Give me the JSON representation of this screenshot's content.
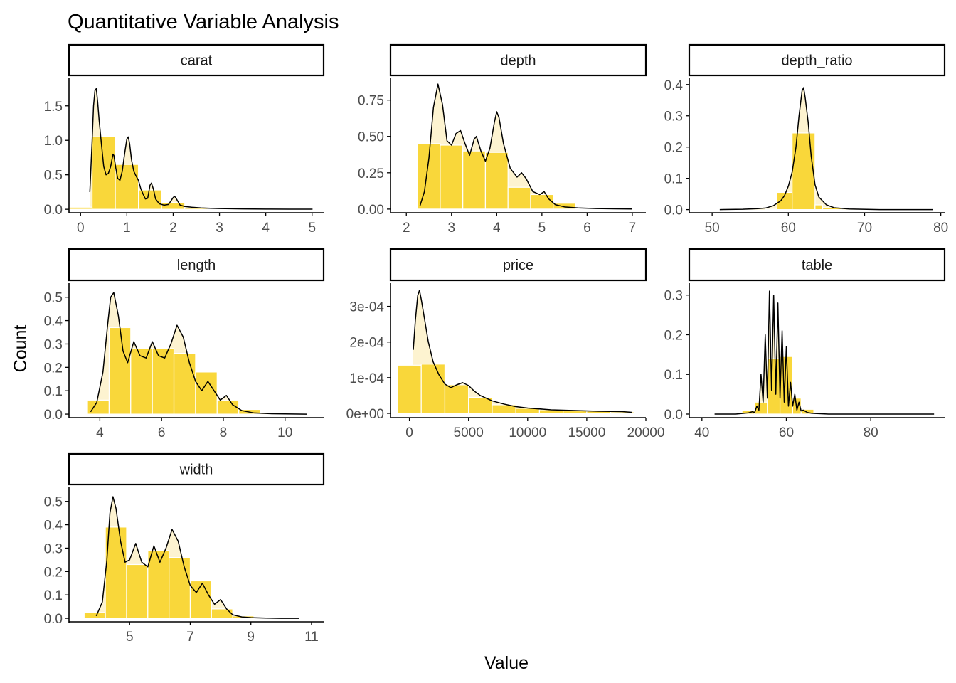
{
  "title": "Quantitative Variable Analysis",
  "xlabel": "Value",
  "ylabel": "Count",
  "colors": {
    "bar_fill": "#F9D73A",
    "density_fill": "#FDF3D0",
    "density_line": "#000000",
    "bar_border": "#ffffff",
    "strip_border": "#000000",
    "axis": "#000000"
  },
  "chart_data": [
    {
      "type": "histogram+density",
      "panel": "carat",
      "xlim": [
        -0.25,
        5.25
      ],
      "ylim": [
        -0.05,
        1.9
      ],
      "xticks": [
        0,
        1,
        2,
        3,
        4,
        5
      ],
      "xtick_labels": [
        "0",
        "1",
        "2",
        "3",
        "4",
        "5"
      ],
      "yticks": [
        0,
        0.5,
        1.0,
        1.5
      ],
      "ytick_labels": [
        "0.0",
        "0.5",
        "1.0",
        "1.5"
      ],
      "bins": [
        {
          "x0": -0.25,
          "x1": 0.25,
          "count": 0.03
        },
        {
          "x0": 0.25,
          "x1": 0.75,
          "count": 1.05
        },
        {
          "x0": 0.75,
          "x1": 1.25,
          "count": 0.65
        },
        {
          "x0": 1.25,
          "x1": 1.75,
          "count": 0.28
        },
        {
          "x0": 1.75,
          "x1": 2.25,
          "count": 0.1
        },
        {
          "x0": 2.25,
          "x1": 2.75,
          "count": 0.02
        },
        {
          "x0": 2.75,
          "x1": 3.25,
          "count": 0.003
        }
      ],
      "density": {
        "x": [
          0.2,
          0.25,
          0.28,
          0.31,
          0.34,
          0.37,
          0.4,
          0.45,
          0.5,
          0.55,
          0.6,
          0.65,
          0.7,
          0.72,
          0.76,
          0.8,
          0.85,
          0.9,
          0.95,
          1.0,
          1.03,
          1.06,
          1.1,
          1.15,
          1.2,
          1.25,
          1.3,
          1.35,
          1.4,
          1.45,
          1.5,
          1.53,
          1.57,
          1.62,
          1.7,
          1.8,
          1.9,
          2.0,
          2.03,
          2.08,
          2.15,
          2.25,
          2.4,
          2.6,
          2.8,
          3.0,
          3.5,
          4.0,
          4.5,
          5.01
        ],
        "y": [
          0.25,
          1.0,
          1.5,
          1.72,
          1.75,
          1.55,
          1.3,
          0.95,
          0.62,
          0.5,
          0.52,
          0.62,
          0.8,
          0.78,
          0.6,
          0.45,
          0.42,
          0.55,
          0.8,
          1.02,
          1.05,
          0.95,
          0.72,
          0.55,
          0.48,
          0.42,
          0.3,
          0.22,
          0.15,
          0.16,
          0.35,
          0.38,
          0.3,
          0.15,
          0.08,
          0.06,
          0.07,
          0.17,
          0.19,
          0.14,
          0.06,
          0.04,
          0.03,
          0.02,
          0.015,
          0.01,
          0.005,
          0.003,
          0.002,
          0.001
        ]
      }
    },
    {
      "type": "histogram+density",
      "panel": "depth",
      "xlim": [
        1.65,
        7.3
      ],
      "ylim": [
        -0.025,
        0.9
      ],
      "xticks": [
        2,
        3,
        4,
        5,
        6,
        7
      ],
      "xtick_labels": [
        "2",
        "3",
        "4",
        "5",
        "6",
        "7"
      ],
      "yticks": [
        0,
        0.25,
        0.5,
        0.75
      ],
      "ytick_labels": [
        "0.00",
        "0.25",
        "0.50",
        "0.75"
      ],
      "bins": [
        {
          "x0": 2.25,
          "x1": 2.75,
          "count": 0.45
        },
        {
          "x0": 2.75,
          "x1": 3.25,
          "count": 0.44
        },
        {
          "x0": 3.25,
          "x1": 3.75,
          "count": 0.4
        },
        {
          "x0": 3.75,
          "x1": 4.25,
          "count": 0.39
        },
        {
          "x0": 4.25,
          "x1": 4.75,
          "count": 0.15
        },
        {
          "x0": 4.75,
          "x1": 5.25,
          "count": 0.1
        },
        {
          "x0": 5.25,
          "x1": 5.75,
          "count": 0.04
        },
        {
          "x0": 5.75,
          "x1": 6.25,
          "count": 0.003
        }
      ],
      "density": {
        "x": [
          2.3,
          2.4,
          2.5,
          2.6,
          2.7,
          2.8,
          2.9,
          3.0,
          3.1,
          3.2,
          3.3,
          3.4,
          3.5,
          3.55,
          3.65,
          3.75,
          3.85,
          3.95,
          4.0,
          4.05,
          4.15,
          4.3,
          4.45,
          4.55,
          4.65,
          4.8,
          4.95,
          5.05,
          5.15,
          5.3,
          5.5,
          5.8,
          6.2,
          6.6,
          7.0
        ],
        "y": [
          0.02,
          0.12,
          0.35,
          0.7,
          0.86,
          0.72,
          0.47,
          0.44,
          0.52,
          0.54,
          0.45,
          0.37,
          0.48,
          0.5,
          0.4,
          0.33,
          0.42,
          0.6,
          0.67,
          0.63,
          0.45,
          0.28,
          0.22,
          0.25,
          0.21,
          0.12,
          0.1,
          0.12,
          0.07,
          0.03,
          0.015,
          0.008,
          0.004,
          0.002,
          0.001
        ]
      }
    },
    {
      "type": "histogram+density",
      "panel": "depth_ratio",
      "xlim": [
        47.0,
        80.5
      ],
      "ylim": [
        -0.01,
        0.42
      ],
      "xticks": [
        50,
        60,
        70,
        80
      ],
      "xtick_labels": [
        "50",
        "60",
        "70",
        "80"
      ],
      "yticks": [
        0,
        0.1,
        0.2,
        0.3,
        0.4
      ],
      "ytick_labels": [
        "0.0",
        "0.1",
        "0.2",
        "0.3",
        "0.4"
      ],
      "bins": [
        {
          "x0": 57.0,
          "x1": 58.5,
          "count": 0.003
        },
        {
          "x0": 58.5,
          "x1": 60.5,
          "count": 0.055
        },
        {
          "x0": 60.5,
          "x1": 63.5,
          "count": 0.245
        },
        {
          "x0": 63.5,
          "x1": 64.5,
          "count": 0.015
        },
        {
          "x0": 64.5,
          "x1": 67.0,
          "count": 0.006
        }
      ],
      "density": {
        "x": [
          51.0,
          54.0,
          56.0,
          57.0,
          58.0,
          59.0,
          59.5,
          60.0,
          60.5,
          61.0,
          61.4,
          61.8,
          62.0,
          62.2,
          62.6,
          63.0,
          63.5,
          64.0,
          65.0,
          66.0,
          68.0,
          72.0,
          76.0,
          79.0
        ],
        "y": [
          0.0,
          0.001,
          0.003,
          0.005,
          0.012,
          0.028,
          0.045,
          0.075,
          0.12,
          0.2,
          0.3,
          0.38,
          0.39,
          0.36,
          0.28,
          0.17,
          0.08,
          0.04,
          0.015,
          0.006,
          0.002,
          0.0,
          0.0,
          0.0
        ]
      }
    },
    {
      "type": "histogram+density",
      "panel": "length",
      "xlim": [
        3.0,
        11.25
      ],
      "ylim": [
        -0.015,
        0.56
      ],
      "xticks": [
        4,
        6,
        8,
        10
      ],
      "xtick_labels": [
        "4",
        "6",
        "8",
        "10"
      ],
      "yticks": [
        0,
        0.1,
        0.2,
        0.3,
        0.4,
        0.5
      ],
      "ytick_labels": [
        "0.0",
        "0.1",
        "0.2",
        "0.3",
        "0.4",
        "0.5"
      ],
      "bins": [
        {
          "x0": 3.6,
          "x1": 4.3,
          "count": 0.06
        },
        {
          "x0": 4.3,
          "x1": 5.0,
          "count": 0.37
        },
        {
          "x0": 5.0,
          "x1": 5.7,
          "count": 0.28
        },
        {
          "x0": 5.7,
          "x1": 6.4,
          "count": 0.28
        },
        {
          "x0": 6.4,
          "x1": 7.1,
          "count": 0.26
        },
        {
          "x0": 7.1,
          "x1": 7.8,
          "count": 0.18
        },
        {
          "x0": 7.8,
          "x1": 8.5,
          "count": 0.06
        },
        {
          "x0": 8.5,
          "x1": 9.2,
          "count": 0.02
        }
      ],
      "density": {
        "x": [
          3.7,
          3.9,
          4.1,
          4.25,
          4.35,
          4.45,
          4.6,
          4.75,
          4.9,
          5.1,
          5.3,
          5.5,
          5.7,
          5.9,
          6.1,
          6.3,
          6.5,
          6.7,
          6.9,
          7.1,
          7.3,
          7.5,
          7.7,
          7.9,
          8.1,
          8.3,
          8.6,
          9.0,
          9.5,
          10.0,
          10.7
        ],
        "y": [
          0.01,
          0.05,
          0.18,
          0.38,
          0.5,
          0.52,
          0.42,
          0.27,
          0.22,
          0.31,
          0.25,
          0.24,
          0.31,
          0.25,
          0.24,
          0.3,
          0.38,
          0.33,
          0.22,
          0.14,
          0.1,
          0.14,
          0.1,
          0.06,
          0.08,
          0.04,
          0.015,
          0.005,
          0.002,
          0.001,
          0.0
        ]
      }
    },
    {
      "type": "histogram+density",
      "panel": "price",
      "xlim": [
        -1600,
        20000
      ],
      "ylim": [
        -1.2e-05,
        0.000365
      ],
      "xticks": [
        0,
        5000,
        10000,
        15000,
        20000
      ],
      "xtick_labels": [
        "0",
        "5000",
        "10000",
        "15000",
        "20000"
      ],
      "yticks": [
        0,
        0.0001,
        0.0002,
        0.0003
      ],
      "ytick_labels": [
        "0e+00",
        "1e-04",
        "2e-04",
        "3e-04"
      ],
      "bins": [
        {
          "x0": -1000,
          "x1": 1000,
          "count": 0.000135
        },
        {
          "x0": 1000,
          "x1": 3000,
          "count": 0.000138
        },
        {
          "x0": 3000,
          "x1": 5000,
          "count": 8e-05
        },
        {
          "x0": 5000,
          "x1": 7000,
          "count": 4.5e-05
        },
        {
          "x0": 7000,
          "x1": 9000,
          "count": 2.4e-05
        },
        {
          "x0": 9000,
          "x1": 11000,
          "count": 1.4e-05
        },
        {
          "x0": 11000,
          "x1": 13000,
          "count": 1e-05
        },
        {
          "x0": 13000,
          "x1": 15000,
          "count": 7e-06
        },
        {
          "x0": 15000,
          "x1": 17000,
          "count": 6e-06
        },
        {
          "x0": 17000,
          "x1": 19000,
          "count": 4e-06
        }
      ],
      "density": {
        "x": [
          326,
          500,
          700,
          850,
          1000,
          1300,
          1600,
          2000,
          2500,
          3000,
          3500,
          4000,
          4500,
          5000,
          5500,
          6000,
          7000,
          8000,
          9000,
          10000,
          12000,
          14000,
          16000,
          18000,
          18800
        ],
        "y": [
          0.000178,
          0.00026,
          0.00033,
          0.000345,
          0.00032,
          0.00026,
          0.0002,
          0.000145,
          0.000108,
          8.2e-05,
          7.2e-05,
          8e-05,
          8.6e-05,
          7.8e-05,
          6.2e-05,
          5e-05,
          3.5e-05,
          2.6e-05,
          1.9e-05,
          1.5e-05,
          1e-05,
          8e-06,
          6e-06,
          5e-06,
          3e-06
        ]
      }
    },
    {
      "type": "histogram+density",
      "panel": "table",
      "xlim": [
        37.0,
        97.5
      ],
      "ylim": [
        -0.009,
        0.33
      ],
      "xticks": [
        40,
        60,
        80
      ],
      "xtick_labels": [
        "40",
        "60",
        "80"
      ],
      "yticks": [
        0,
        0.1,
        0.2,
        0.3
      ],
      "ytick_labels": [
        "0.0",
        "0.1",
        "0.2",
        "0.3"
      ],
      "bins": [
        {
          "x0": 49.5,
          "x1": 52.5,
          "count": 0.01
        },
        {
          "x0": 52.5,
          "x1": 55.5,
          "count": 0.03
        },
        {
          "x0": 55.5,
          "x1": 58.5,
          "count": 0.14
        },
        {
          "x0": 58.5,
          "x1": 61.5,
          "count": 0.145
        },
        {
          "x0": 61.5,
          "x1": 63.5,
          "count": 0.04
        },
        {
          "x0": 63.5,
          "x1": 66.5,
          "count": 0.012
        }
      ],
      "density": {
        "x": [
          43.0,
          48.0,
          50.0,
          51.0,
          52.0,
          52.5,
          53.0,
          53.5,
          54.0,
          54.5,
          55.0,
          55.5,
          56.0,
          56.5,
          57.0,
          57.5,
          58.0,
          58.5,
          59.0,
          59.5,
          60.0,
          60.5,
          61.0,
          61.5,
          62.0,
          62.5,
          63.0,
          63.5,
          64.0,
          65.0,
          66.0,
          70.0,
          80.0,
          95.0
        ],
        "y": [
          0.0,
          0.0,
          0.002,
          0.003,
          0.006,
          0.004,
          0.02,
          0.01,
          0.1,
          0.03,
          0.2,
          0.04,
          0.31,
          0.06,
          0.3,
          0.05,
          0.28,
          0.04,
          0.21,
          0.03,
          0.17,
          0.02,
          0.08,
          0.02,
          0.05,
          0.01,
          0.03,
          0.008,
          0.01,
          0.004,
          0.002,
          0.0,
          0.0,
          0.0
        ]
      }
    },
    {
      "type": "histogram+density",
      "panel": "width",
      "xlim": [
        3.0,
        11.4
      ],
      "ylim": [
        -0.015,
        0.56
      ],
      "xticks": [
        5,
        7,
        9,
        11
      ],
      "xtick_labels": [
        "5",
        "7",
        "9",
        "11"
      ],
      "yticks": [
        0,
        0.1,
        0.2,
        0.3,
        0.4,
        0.5
      ],
      "ytick_labels": [
        "0.0",
        "0.1",
        "0.2",
        "0.3",
        "0.4",
        "0.5"
      ],
      "bins": [
        {
          "x0": 3.5,
          "x1": 4.2,
          "count": 0.025
        },
        {
          "x0": 4.2,
          "x1": 4.9,
          "count": 0.39
        },
        {
          "x0": 4.9,
          "x1": 5.6,
          "count": 0.23
        },
        {
          "x0": 5.6,
          "x1": 6.3,
          "count": 0.29
        },
        {
          "x0": 6.3,
          "x1": 7.0,
          "count": 0.26
        },
        {
          "x0": 7.0,
          "x1": 7.7,
          "count": 0.16
        },
        {
          "x0": 7.7,
          "x1": 8.4,
          "count": 0.04
        },
        {
          "x0": 8.4,
          "x1": 9.1,
          "count": 0.01
        }
      ],
      "density": {
        "x": [
          3.9,
          4.1,
          4.25,
          4.35,
          4.45,
          4.55,
          4.7,
          4.85,
          5.0,
          5.2,
          5.4,
          5.6,
          5.8,
          6.0,
          6.2,
          6.4,
          6.6,
          6.8,
          7.0,
          7.2,
          7.4,
          7.6,
          7.8,
          8.0,
          8.2,
          8.4,
          8.7,
          9.0,
          9.5,
          10.0,
          10.6
        ],
        "y": [
          0.01,
          0.07,
          0.25,
          0.45,
          0.52,
          0.47,
          0.33,
          0.24,
          0.25,
          0.32,
          0.24,
          0.22,
          0.31,
          0.24,
          0.3,
          0.38,
          0.33,
          0.22,
          0.14,
          0.11,
          0.15,
          0.1,
          0.06,
          0.08,
          0.04,
          0.015,
          0.006,
          0.003,
          0.001,
          0.0,
          0.0
        ]
      }
    }
  ]
}
